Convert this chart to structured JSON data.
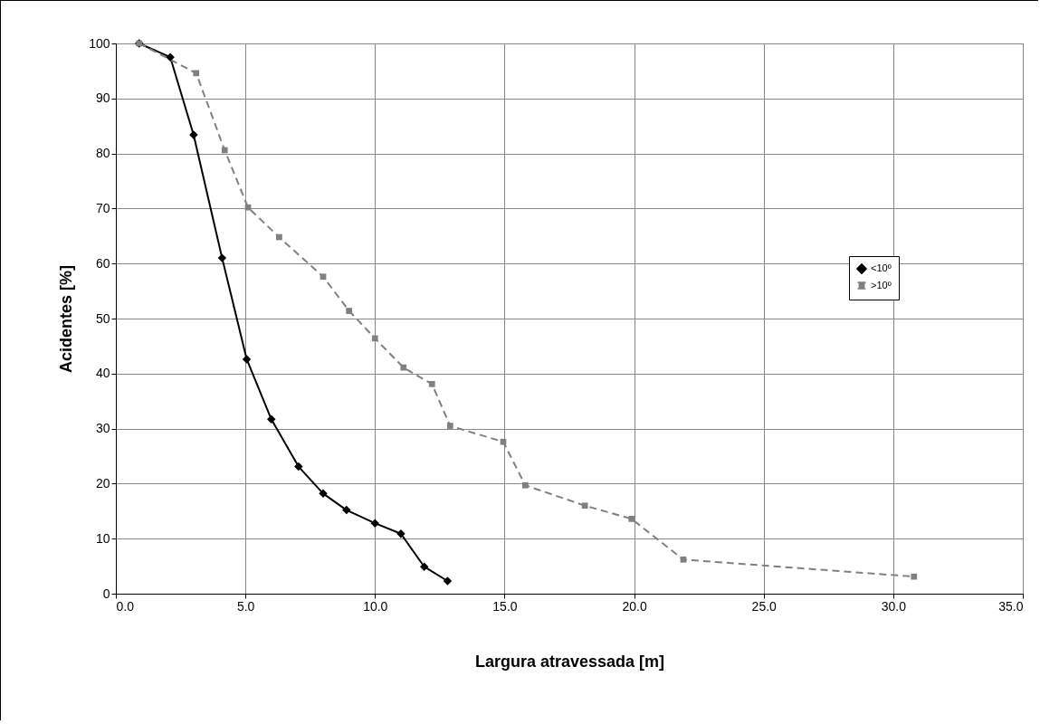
{
  "chart_data": {
    "type": "line",
    "xlabel": "Largura atravessada [m]",
    "ylabel": "Acidentes [%]",
    "xlim": [
      0,
      35
    ],
    "xticks": [
      {
        "value": 0,
        "label": "0.0"
      },
      {
        "value": 5,
        "label": "5.0"
      },
      {
        "value": 10,
        "label": "10.0"
      },
      {
        "value": 15,
        "label": "15.0"
      },
      {
        "value": 20,
        "label": "20.0"
      },
      {
        "value": 25,
        "label": "25.0"
      },
      {
        "value": 30,
        "label": "30.0"
      },
      {
        "value": 35,
        "label": "35.0"
      }
    ],
    "ylim": [
      0,
      100
    ],
    "yticks": [
      0,
      10,
      20,
      30,
      40,
      50,
      60,
      70,
      80,
      90,
      100
    ],
    "grid": true,
    "legend": "right",
    "series": [
      {
        "name": "<10º",
        "color": "#000000",
        "marker": "diamond",
        "line_style": "solid",
        "x": [
          0.9,
          2.1,
          3.0,
          4.1,
          5.05,
          6.0,
          7.05,
          8.0,
          8.9,
          10.0,
          11.0,
          11.9,
          12.8
        ],
        "values": [
          100,
          97.5,
          83.4,
          61,
          42.6,
          31.7,
          23.1,
          18.2,
          15.2,
          12.8,
          10.9,
          4.9,
          2.3
        ]
      },
      {
        "name": ">10º",
        "color": "#808080",
        "marker": "square",
        "line_style": "dashed",
        "x": [
          0.9,
          3.1,
          4.2,
          5.1,
          6.3,
          8.0,
          9.0,
          10.0,
          11.1,
          12.2,
          12.9,
          14.95,
          15.8,
          18.1,
          19.9,
          21.9,
          30.8
        ],
        "values": [
          100,
          94.6,
          80.6,
          70.2,
          64.8,
          57.6,
          51.4,
          46.4,
          41.1,
          38.1,
          30.5,
          27.6,
          19.7,
          16.0,
          13.6,
          6.2,
          3.1
        ]
      }
    ]
  }
}
